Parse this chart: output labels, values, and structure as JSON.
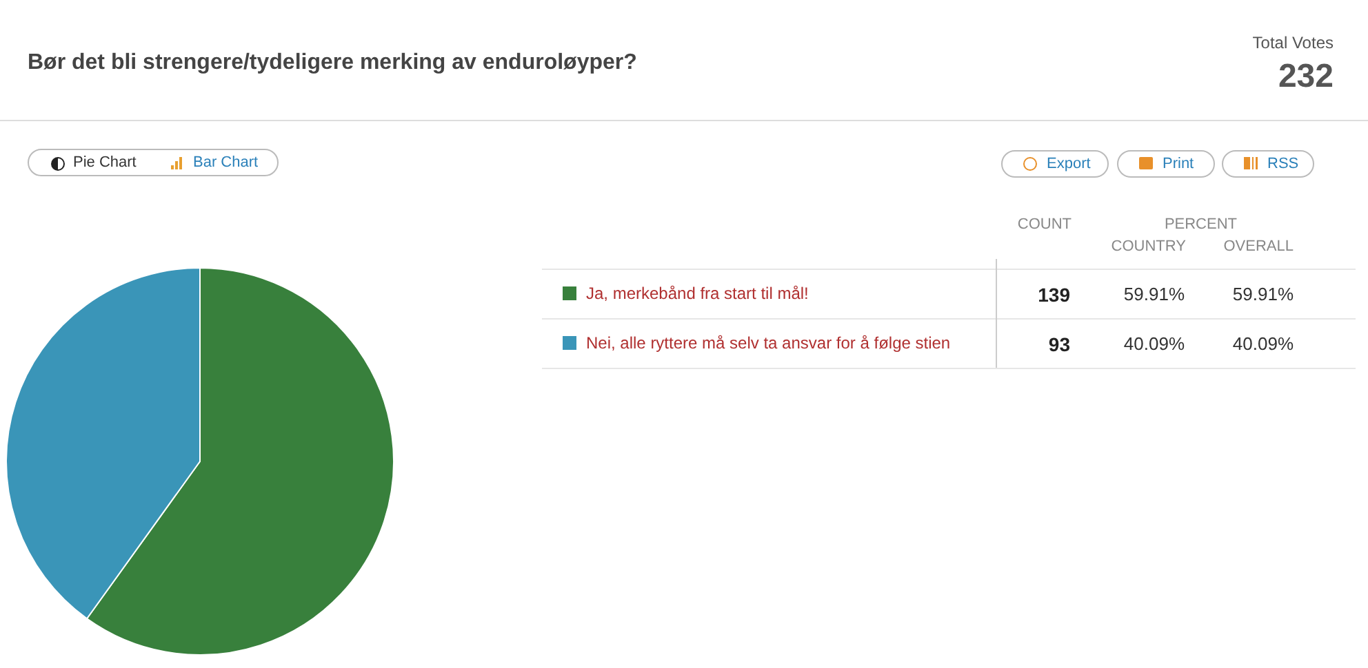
{
  "chart_data": {
    "type": "pie",
    "title": "Bør det bli strengere/tydeligere merking av enduroløyper?",
    "categories": [
      "Ja, merkebånd fra start til mål!",
      "Nei, alle ryttere må selv ta ansvar for å følge stien"
    ],
    "values": [
      139,
      93
    ],
    "colors": [
      "#38803c",
      "#3a95b8"
    ],
    "data_labels": true,
    "legend": "right",
    "annotations": [
      "Total Votes",
      "232",
      "Pie Chart",
      "Bar Chart",
      "Export",
      "Print",
      "RSS",
      "COUNT",
      "PERCENT",
      "COUNTRY",
      "OVERALL",
      "59.91%",
      "59.91%",
      "40.09%",
      "40.09%"
    ]
  }
}
